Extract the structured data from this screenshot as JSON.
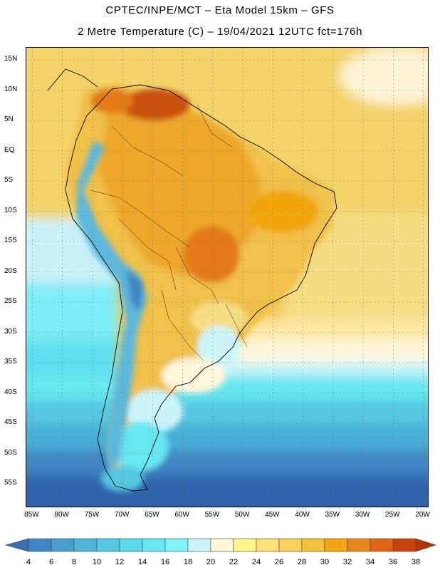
{
  "header": {
    "line1": "CPTEC/INPE/MCT –   Eta Model 15km – GFS",
    "line2": "2 Metre Temperature (C) – 19/04/2021 12UTC fct=176h"
  },
  "map": {
    "region": "South America",
    "variable": "2 Metre Temperature",
    "unit": "C",
    "lon_range": [
      -86,
      -19
    ],
    "lat_range": [
      -59,
      17
    ],
    "latitude_labels": [
      "15N",
      "10N",
      "5N",
      "EQ",
      "5S",
      "10S",
      "15S",
      "20S",
      "25S",
      "30S",
      "35S",
      "40S",
      "45S",
      "50S",
      "55S"
    ],
    "longitude_labels": [
      "85W",
      "80W",
      "75W",
      "70W",
      "65W",
      "60W",
      "55W",
      "50W",
      "45W",
      "40W",
      "35W",
      "30W",
      "25W",
      "20W"
    ],
    "latitude_values": [
      15,
      10,
      5,
      0,
      -5,
      -10,
      -15,
      -20,
      -25,
      -30,
      -35,
      -40,
      -45,
      -50,
      -55
    ],
    "longitude_values": [
      -85,
      -80,
      -75,
      -70,
      -65,
      -60,
      -55,
      -50,
      -45,
      -40,
      -35,
      -30,
      -25,
      -20
    ]
  },
  "colorbar": {
    "tick_labels": [
      "4",
      "6",
      "8",
      "10",
      "12",
      "14",
      "16",
      "18",
      "20",
      "22",
      "24",
      "26",
      "28",
      "30",
      "32",
      "34",
      "36",
      "38"
    ],
    "colors": [
      "#3a6fb4",
      "#3f86c2",
      "#4a9dcc",
      "#52b3d8",
      "#55c7e0",
      "#5bd8ea",
      "#68e6f0",
      "#7ff5fb",
      "#ccf5fb",
      "#fff8dc",
      "#fff58c",
      "#fde07a",
      "#f8d05c",
      "#f3c23b",
      "#f0a60e",
      "#e8871c",
      "#df641a",
      "#c9420c",
      "#b33506"
    ]
  }
}
